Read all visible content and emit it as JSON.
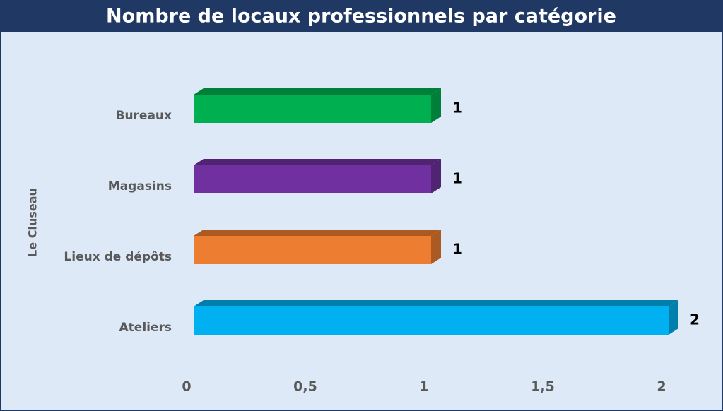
{
  "chart_data": {
    "type": "bar",
    "orientation": "horizontal",
    "title": "Nombre de locaux professionnels par catégorie",
    "y_label": "Le Cluseau",
    "categories": [
      "Bureaux",
      "Magasins",
      "Lieux de dépôts",
      "Ateliers"
    ],
    "values": [
      1,
      1,
      1,
      2
    ],
    "colors": [
      "#00b050",
      "#7030a0",
      "#ed7d31",
      "#00b0f0"
    ],
    "xlim": [
      0,
      2
    ],
    "xticks": [
      0,
      {
        "value": 0.5,
        "label": "0,5"
      },
      1,
      {
        "value": 1.5,
        "label": "1,5"
      },
      2
    ],
    "grid": false
  }
}
